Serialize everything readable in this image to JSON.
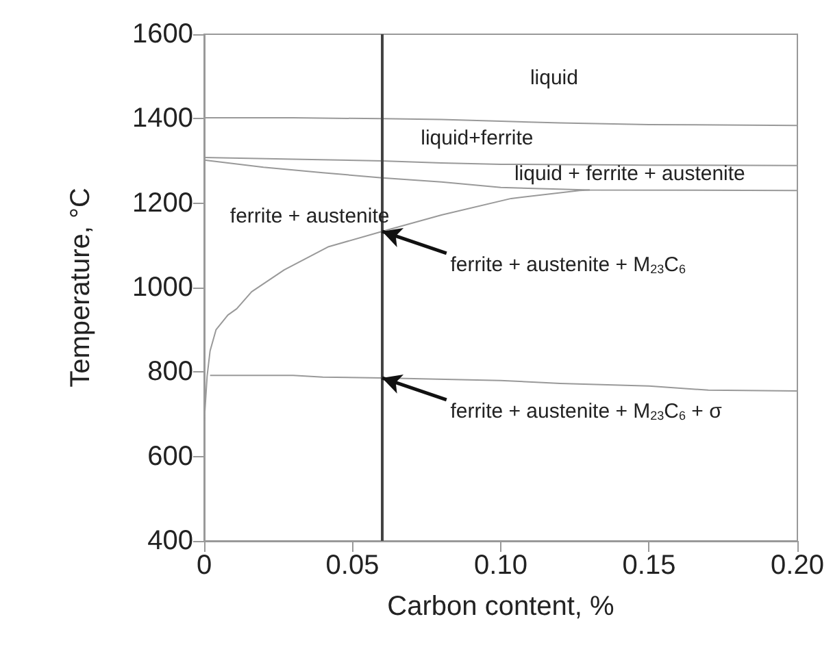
{
  "chart_data": {
    "type": "line",
    "xlabel": "Carbon content, %",
    "ylabel": "Temperature, °C",
    "xlim": [
      0,
      0.2
    ],
    "xticks": [
      0,
      0.05,
      {
        "value": 0.1,
        "label": "0.10"
      },
      0.15,
      {
        "value": 0.2,
        "label": "0.20"
      }
    ],
    "ylim": [
      400,
      1600
    ],
    "yticks": [
      400,
      600,
      800,
      1000,
      1200,
      1400,
      1600
    ],
    "grid": false,
    "marker": "none",
    "line_style": "solid",
    "series": [
      {
        "color": "#999999",
        "x": [
          0,
          0.03,
          0.06,
          0.08,
          0.1,
          0.12,
          0.15,
          0.2
        ],
        "values": [
          1402,
          1402,
          1400,
          1398,
          1394,
          1390,
          1386,
          1384
        ]
      },
      {
        "color": "#999999",
        "x": [
          0,
          0.03,
          0.06,
          0.08,
          0.1,
          0.15,
          0.2
        ],
        "values": [
          1308,
          1304,
          1300,
          1295,
          1292,
          1290,
          1289
        ]
      },
      {
        "color": "#999999",
        "x": [
          0,
          0.02,
          0.04,
          0.06,
          0.08,
          0.1,
          0.13,
          0.2
        ],
        "values": [
          1302,
          1285,
          1272,
          1260,
          1250,
          1237,
          1231,
          1230
        ]
      },
      {
        "color": "#999999",
        "x": [
          0,
          0,
          0.001,
          0.002,
          0.004,
          0.008,
          0.011,
          0.016,
          0.027,
          0.042,
          0.06,
          0.08,
          0.1035,
          0.1265,
          0.13
        ],
        "values": [
          460,
          680,
          790,
          850,
          900,
          935,
          950,
          990,
          1042,
          1097,
          1133,
          1172,
          1211,
          1230,
          1231
        ]
      },
      {
        "color": "#999999",
        "x": [
          0.002,
          0.03,
          0.04,
          0.06,
          0.1,
          0.12,
          0.15,
          0.17,
          0.2
        ],
        "values": [
          792,
          792,
          788,
          786,
          780,
          773,
          767,
          757,
          755
        ]
      }
    ],
    "ref_lines": [
      {
        "axis": "x",
        "value": 0.06,
        "color": "#444444"
      }
    ],
    "annotations": [
      "liquid",
      "liquid+ferrite",
      "liquid + ferrite + austenite",
      "ferrite + austenite",
      {
        "text": "ferrite + austenite + M$_{23}$C$_{6}$",
        "x": 0.06,
        "y": 1133
      },
      {
        "text": "ferrite + austenite + M$_{23}$C$_{6}$ + σ",
        "x": 0.06,
        "y": 786
      }
    ]
  }
}
